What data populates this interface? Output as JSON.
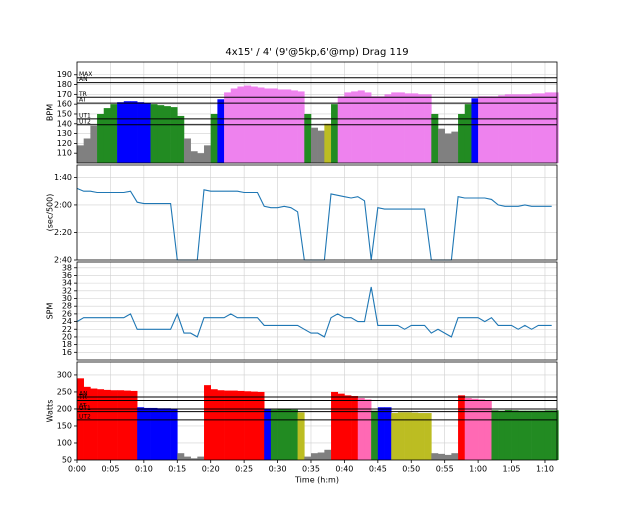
{
  "chart_data": [
    {
      "type": "area",
      "title": "4x15' / 4' (9'@5kp,6'@mp) Drag 119",
      "ylabel": "BPM",
      "values": [
        118,
        125,
        138,
        150,
        156,
        160,
        162,
        163,
        163,
        162,
        161,
        160,
        159,
        158,
        157,
        148,
        125,
        112,
        110,
        118,
        150,
        165,
        172,
        176,
        178,
        179,
        178,
        177,
        176,
        176,
        175,
        175,
        174,
        173,
        150,
        136,
        133,
        140,
        160,
        168,
        172,
        173,
        174,
        172,
        168,
        168,
        170,
        172,
        172,
        171,
        171,
        170,
        170,
        150,
        135,
        130,
        132,
        150,
        160,
        166,
        168,
        168,
        168,
        169,
        170,
        170,
        170,
        170,
        171,
        171,
        172,
        172
      ],
      "ylim": [
        100,
        203
      ],
      "yticks": [
        110,
        120,
        130,
        140,
        150,
        160,
        170,
        180,
        190
      ],
      "grid": true,
      "below_color": "#808080",
      "zones": [
        {
          "label": "MAX",
          "value": 187,
          "color": "#ee82ee"
        },
        {
          "label": "AN",
          "value": 182,
          "color": "#ee82ee"
        },
        {
          "label": "TR",
          "value": 167,
          "color": "#ee82ee"
        },
        {
          "label": "AT",
          "value": 161,
          "color": "#0000ff"
        },
        {
          "label": "UT1",
          "value": 145,
          "color": "#228b22"
        },
        {
          "label": "UT2",
          "value": 139,
          "color": "#bcbd22"
        }
      ]
    },
    {
      "type": "line",
      "ylabel": "(sec/500)",
      "color": "#1f77b4",
      "values": [
        108,
        110,
        110,
        111,
        111,
        111,
        111,
        111,
        110,
        118,
        119,
        119,
        119,
        119,
        119,
        160,
        160,
        160,
        160,
        109,
        110,
        110,
        110,
        110,
        110,
        111,
        111,
        111,
        121,
        122,
        122,
        121,
        122,
        125,
        160,
        160,
        160,
        160,
        112,
        113,
        114,
        115,
        114,
        117,
        160,
        122,
        123,
        123,
        123,
        123,
        123,
        123,
        123,
        160,
        160,
        160,
        160,
        114,
        115,
        115,
        115,
        115,
        116,
        120,
        121,
        121,
        121,
        120,
        121,
        121,
        121,
        121
      ],
      "ylim": [
        160,
        91
      ],
      "yticks": [
        {
          "value": 100,
          "label": "1:40"
        },
        {
          "value": 120,
          "label": "2:00"
        },
        {
          "value": 140,
          "label": "2:20"
        },
        {
          "value": 160,
          "label": "2:40"
        }
      ],
      "grid": true
    },
    {
      "type": "line",
      "ylabel": "SPM",
      "color": "#1f77b4",
      "values": [
        24,
        25,
        25,
        25,
        25,
        25,
        25,
        25,
        26,
        22,
        22,
        22,
        22,
        22,
        22,
        26,
        21,
        21,
        20,
        25,
        25,
        25,
        25,
        26,
        25,
        25,
        25,
        25,
        23,
        23,
        23,
        23,
        23,
        23,
        22,
        21,
        21,
        20,
        25,
        26,
        25,
        25,
        24,
        24,
        33,
        23,
        23,
        23,
        23,
        22,
        23,
        23,
        23,
        21,
        22,
        21,
        20,
        25,
        25,
        25,
        25,
        24,
        25,
        23,
        23,
        23,
        22,
        23,
        22,
        23,
        23,
        23
      ],
      "ylim": [
        14,
        39.5
      ],
      "yticks": [
        16,
        18,
        20,
        22,
        24,
        26,
        28,
        30,
        32,
        34,
        36,
        38
      ],
      "grid": true
    },
    {
      "type": "area",
      "ylabel": "Watts",
      "xlabel": "Time (h:m)",
      "x": [
        0,
        1,
        2,
        3,
        4,
        5,
        6,
        7,
        8,
        9,
        10,
        11,
        12,
        13,
        14,
        15,
        16,
        17,
        18,
        19,
        20,
        21,
        22,
        23,
        24,
        25,
        26,
        27,
        28,
        29,
        30,
        31,
        32,
        33,
        34,
        35,
        36,
        37,
        38,
        39,
        40,
        41,
        42,
        43,
        44,
        45,
        46,
        47,
        48,
        49,
        50,
        51,
        52,
        53,
        54,
        55,
        56,
        57,
        58,
        59,
        60,
        61,
        62,
        63,
        64,
        65,
        66,
        67,
        68,
        69,
        70,
        71
      ],
      "values": [
        290,
        265,
        260,
        258,
        256,
        255,
        255,
        254,
        253,
        205,
        203,
        203,
        202,
        202,
        201,
        70,
        60,
        55,
        60,
        270,
        258,
        255,
        254,
        254,
        253,
        252,
        251,
        250,
        200,
        198,
        199,
        199,
        198,
        190,
        60,
        70,
        72,
        80,
        250,
        245,
        240,
        238,
        232,
        228,
        195,
        205,
        205,
        188,
        190,
        190,
        189,
        188,
        188,
        70,
        68,
        65,
        70,
        240,
        232,
        230,
        228,
        226,
        196,
        195,
        197,
        196,
        195,
        195,
        195,
        195,
        196,
        196
      ],
      "ylim": [
        50,
        338
      ],
      "yticks": [
        50,
        100,
        150,
        200,
        250,
        300
      ],
      "grid": true,
      "xlim": [
        0,
        71.8
      ],
      "xticks": [
        {
          "value": 0,
          "label": "0:00"
        },
        {
          "value": 5,
          "label": "0:05"
        },
        {
          "value": 10,
          "label": "0:10"
        },
        {
          "value": 15,
          "label": "0:15"
        },
        {
          "value": 20,
          "label": "0:20"
        },
        {
          "value": 25,
          "label": "0:25"
        },
        {
          "value": 30,
          "label": "0:30"
        },
        {
          "value": 35,
          "label": "0:35"
        },
        {
          "value": 40,
          "label": "0:40"
        },
        {
          "value": 45,
          "label": "0:45"
        },
        {
          "value": 50,
          "label": "0:50"
        },
        {
          "value": 55,
          "label": "0:55"
        },
        {
          "value": 60,
          "label": "1:00"
        },
        {
          "value": 65,
          "label": "1:05"
        },
        {
          "value": 70,
          "label": "1:10"
        }
      ],
      "below_color": "#808080",
      "zones": [
        {
          "label": "AN",
          "value": 235,
          "color": "#ff0000"
        },
        {
          "label": "TR",
          "value": 225,
          "color": "#ff69b4"
        },
        {
          "label": "AT",
          "value": 200,
          "color": "#0000ff"
        },
        {
          "label": "UT1",
          "value": 192,
          "color": "#228b22"
        },
        {
          "label": "UT2",
          "value": 168,
          "color": "#bcbd22"
        }
      ]
    }
  ]
}
